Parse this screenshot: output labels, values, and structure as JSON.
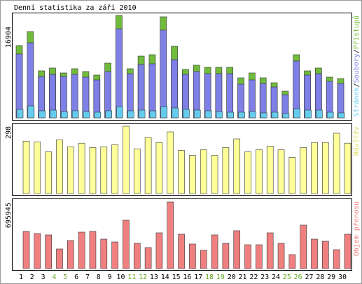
{
  "title": "Denní statistika za září 2010",
  "chart_data": [
    {
      "type": "bar",
      "ylim": [
        0,
        16904
      ],
      "yticks": [
        16904
      ],
      "legend_separator": "/",
      "series": [
        {
          "name": "Stránek",
          "color": "#66ccee",
          "values": [
            1390,
            1969,
            1158,
            1274,
            1042,
            1158,
            1042,
            926,
            1158,
            1853,
            1158,
            1274,
            1158,
            1853,
            1621,
            1390,
            1274,
            1158,
            1042,
            926,
            926,
            1042,
            811,
            926,
            695,
            1505,
            1274,
            1274,
            926,
            811
          ]
        },
        {
          "name": "Soubory",
          "color": "#7f7fe8",
          "values": [
            10538,
            12391,
            6832,
            7180,
            6832,
            7180,
            6716,
            6253,
            7643,
            14707,
            7295,
            8801,
            8917,
            14475,
            9611,
            7180,
            7643,
            7295,
            7295,
            7295,
            5558,
            6253,
            5674,
            5095,
            3821,
            9380,
            7064,
            7295,
            6022,
            5674
          ]
        },
        {
          "name": "Přístupů",
          "color": "#70bb3a",
          "values": [
            11927,
            14243,
            7759,
            8222,
            7411,
            8106,
            7643,
            7064,
            9032,
            16904,
            8106,
            10190,
            10422,
            16675,
            11812,
            7990,
            8685,
            8338,
            8338,
            8338,
            6601,
            7411,
            6601,
            5790,
            4400,
            10422,
            7759,
            8222,
            6716,
            6485
          ]
        }
      ]
    },
    {
      "type": "bar",
      "ylim": [
        0,
        298
      ],
      "yticks": [
        298
      ],
      "legend": "Návštěv",
      "color": "#ffff99",
      "legend_color": "#dddd66",
      "values": [
        232,
        229,
        185,
        238,
        207,
        223,
        204,
        207,
        216,
        298,
        198,
        248,
        226,
        273,
        191,
        169,
        194,
        169,
        204,
        242,
        185,
        194,
        210,
        194,
        160,
        204,
        226,
        226,
        267,
        223
      ]
    },
    {
      "type": "bar",
      "ylim": [
        0,
        695945
      ],
      "yticks": [
        695945
      ],
      "legend": "Objem přenosu",
      "color": "#f08080",
      "legend_color": "#f08080",
      "values": [
        388262,
        366285,
        351634,
        205120,
        293028,
        380936,
        388262,
        307679,
        278377,
        505473,
        263725,
        219771,
        373611,
        695945,
        358959,
        256400,
        190468,
        351634,
        263725,
        395588,
        249074,
        249074,
        373611,
        263725,
        146514,
        454193,
        307679,
        285702,
        197794,
        358959
      ],
      "categories": [
        "1",
        "2",
        "3",
        "4",
        "5",
        "6",
        "7",
        "8",
        "9",
        "10",
        "11",
        "12",
        "13",
        "14",
        "15",
        "16",
        "17",
        "18",
        "19",
        "20",
        "21",
        "22",
        "23",
        "24",
        "25",
        "26",
        "27",
        "28",
        "29",
        "30"
      ],
      "x_label_colors": [
        "#000",
        "#000",
        "#000",
        "#66aa22",
        "#66aa22",
        "#000",
        "#000",
        "#000",
        "#000",
        "#000",
        "#66aa22",
        "#66aa22",
        "#000",
        "#000",
        "#000",
        "#000",
        "#000",
        "#66aa22",
        "#66aa22",
        "#000",
        "#000",
        "#000",
        "#000",
        "#000",
        "#66aa22",
        "#66aa22",
        "#000",
        "#000",
        "#000",
        "#000"
      ]
    }
  ]
}
